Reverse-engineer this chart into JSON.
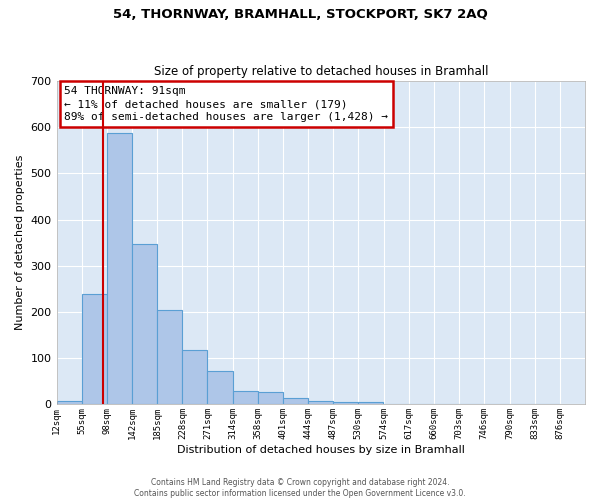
{
  "title": "54, THORNWAY, BRAMHALL, STOCKPORT, SK7 2AQ",
  "subtitle": "Size of property relative to detached houses in Bramhall",
  "xlabel": "Distribution of detached houses by size in Bramhall",
  "ylabel": "Number of detached properties",
  "bin_labels": [
    "12sqm",
    "55sqm",
    "98sqm",
    "142sqm",
    "185sqm",
    "228sqm",
    "271sqm",
    "314sqm",
    "358sqm",
    "401sqm",
    "444sqm",
    "487sqm",
    "530sqm",
    "574sqm",
    "617sqm",
    "660sqm",
    "703sqm",
    "746sqm",
    "790sqm",
    "833sqm",
    "876sqm"
  ],
  "bin_edges": [
    12,
    55,
    98,
    142,
    185,
    228,
    271,
    314,
    358,
    401,
    444,
    487,
    530,
    574,
    617,
    660,
    703,
    746,
    790,
    833,
    876
  ],
  "bar_values": [
    7,
    238,
    587,
    348,
    205,
    118,
    72,
    28,
    26,
    14,
    8,
    5,
    5,
    0,
    0,
    0,
    0,
    0,
    0,
    0
  ],
  "bar_color": "#aec6e8",
  "bar_edge_color": "#5a9fd4",
  "property_size": 91,
  "red_line_color": "#cc0000",
  "annotation_text": "54 THORNWAY: 91sqm\n← 11% of detached houses are smaller (179)\n89% of semi-detached houses are larger (1,428) →",
  "annotation_box_facecolor": "#ffffff",
  "annotation_box_edgecolor": "#cc0000",
  "ylim": [
    0,
    700
  ],
  "yticks": [
    0,
    100,
    200,
    300,
    400,
    500,
    600,
    700
  ],
  "plot_bgcolor": "#dce8f5",
  "grid_color": "#ffffff",
  "footer_line1": "Contains HM Land Registry data © Crown copyright and database right 2024.",
  "footer_line2": "Contains public sector information licensed under the Open Government Licence v3.0."
}
